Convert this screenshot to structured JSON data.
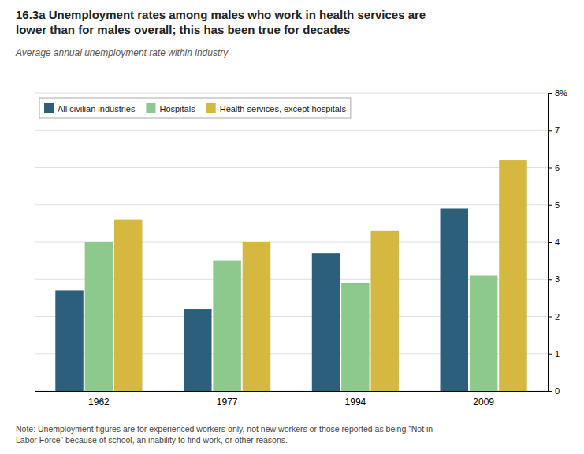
{
  "chart_data": {
    "type": "bar",
    "title": "16.3a  Unemployment rates among males who work in health services are\nlower than for males overall; this has been true for decades",
    "subtitle": "Average annual unemployment rate within industry",
    "annotations": [
      "Note: Unemployment figures are for experienced workers only, not new workers or those reported as being “Not in\nLabor Force” because of school, an inability to find work, or other reasons."
    ],
    "categories": [
      "1962",
      "1977",
      "1994",
      "2009"
    ],
    "series": [
      {
        "name": "All civilian industries",
        "color": "#2c5f7a",
        "values": [
          2.7,
          2.2,
          3.7,
          4.9
        ]
      },
      {
        "name": "Hospitals",
        "color": "#8dc88d",
        "values": [
          4.0,
          3.5,
          2.9,
          3.1
        ]
      },
      {
        "name": "Health services, except hospitals",
        "color": "#d4b840",
        "values": [
          4.6,
          4.0,
          4.3,
          6.2
        ]
      }
    ],
    "ylim": [
      0,
      8
    ],
    "yticks": [
      0,
      1,
      2,
      3,
      4,
      5,
      6,
      7,
      {
        "value": 8,
        "label": "8%"
      }
    ],
    "grid": true,
    "legend": "upper left"
  }
}
